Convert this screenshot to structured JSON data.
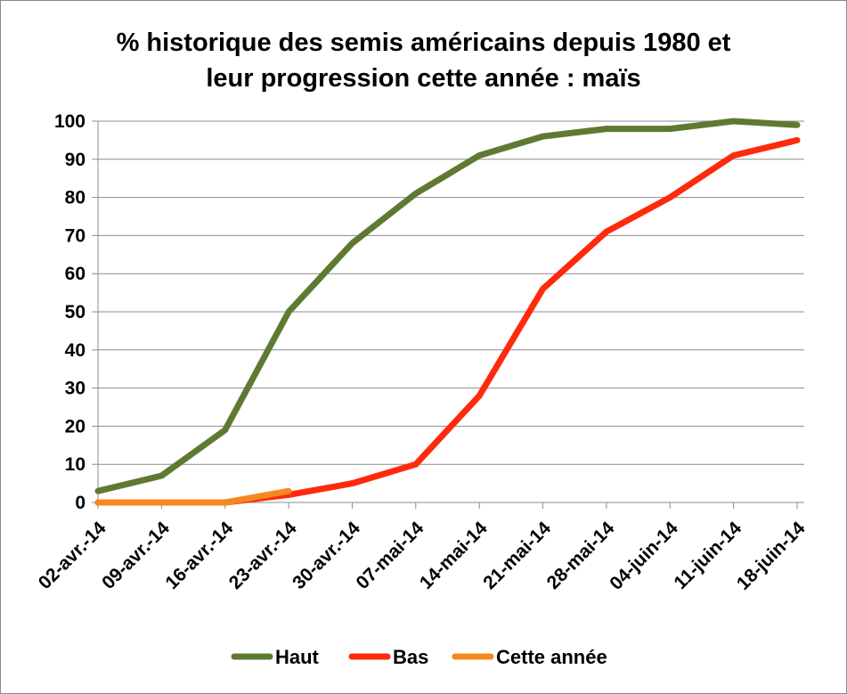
{
  "chart_data": {
    "type": "line",
    "title_line1": "% historique des semis américains depuis 1980 et",
    "title_line2": "leur progression cette année : maïs",
    "xlabel": "",
    "ylabel": "",
    "ylim": [
      0,
      100
    ],
    "yticks": [
      0,
      10,
      20,
      30,
      40,
      50,
      60,
      70,
      80,
      90,
      100
    ],
    "grid": true,
    "legend_position": "bottom",
    "categories": [
      "02-avr.-14",
      "09-avr.-14",
      "16-avr.-14",
      "23-avr.-14",
      "30-avr.-14",
      "07-mai-14",
      "14-mai-14",
      "21-mai-14",
      "28-mai-14",
      "04-juin-14",
      "11-juin-14",
      "18-juin-14"
    ],
    "series": [
      {
        "name": "Haut",
        "color": "#5e7a32",
        "values": [
          3,
          7,
          19,
          50,
          68,
          81,
          91,
          96,
          98,
          98,
          100,
          99
        ]
      },
      {
        "name": "Bas",
        "color": "#ff2a0d",
        "values": [
          0,
          0,
          0,
          2,
          5,
          10,
          28,
          56,
          71,
          80,
          91,
          95
        ]
      },
      {
        "name": "Cette année",
        "color": "#f5891f",
        "values": [
          0,
          0,
          0,
          3,
          null,
          null,
          null,
          null,
          null,
          null,
          null,
          null
        ]
      }
    ]
  }
}
